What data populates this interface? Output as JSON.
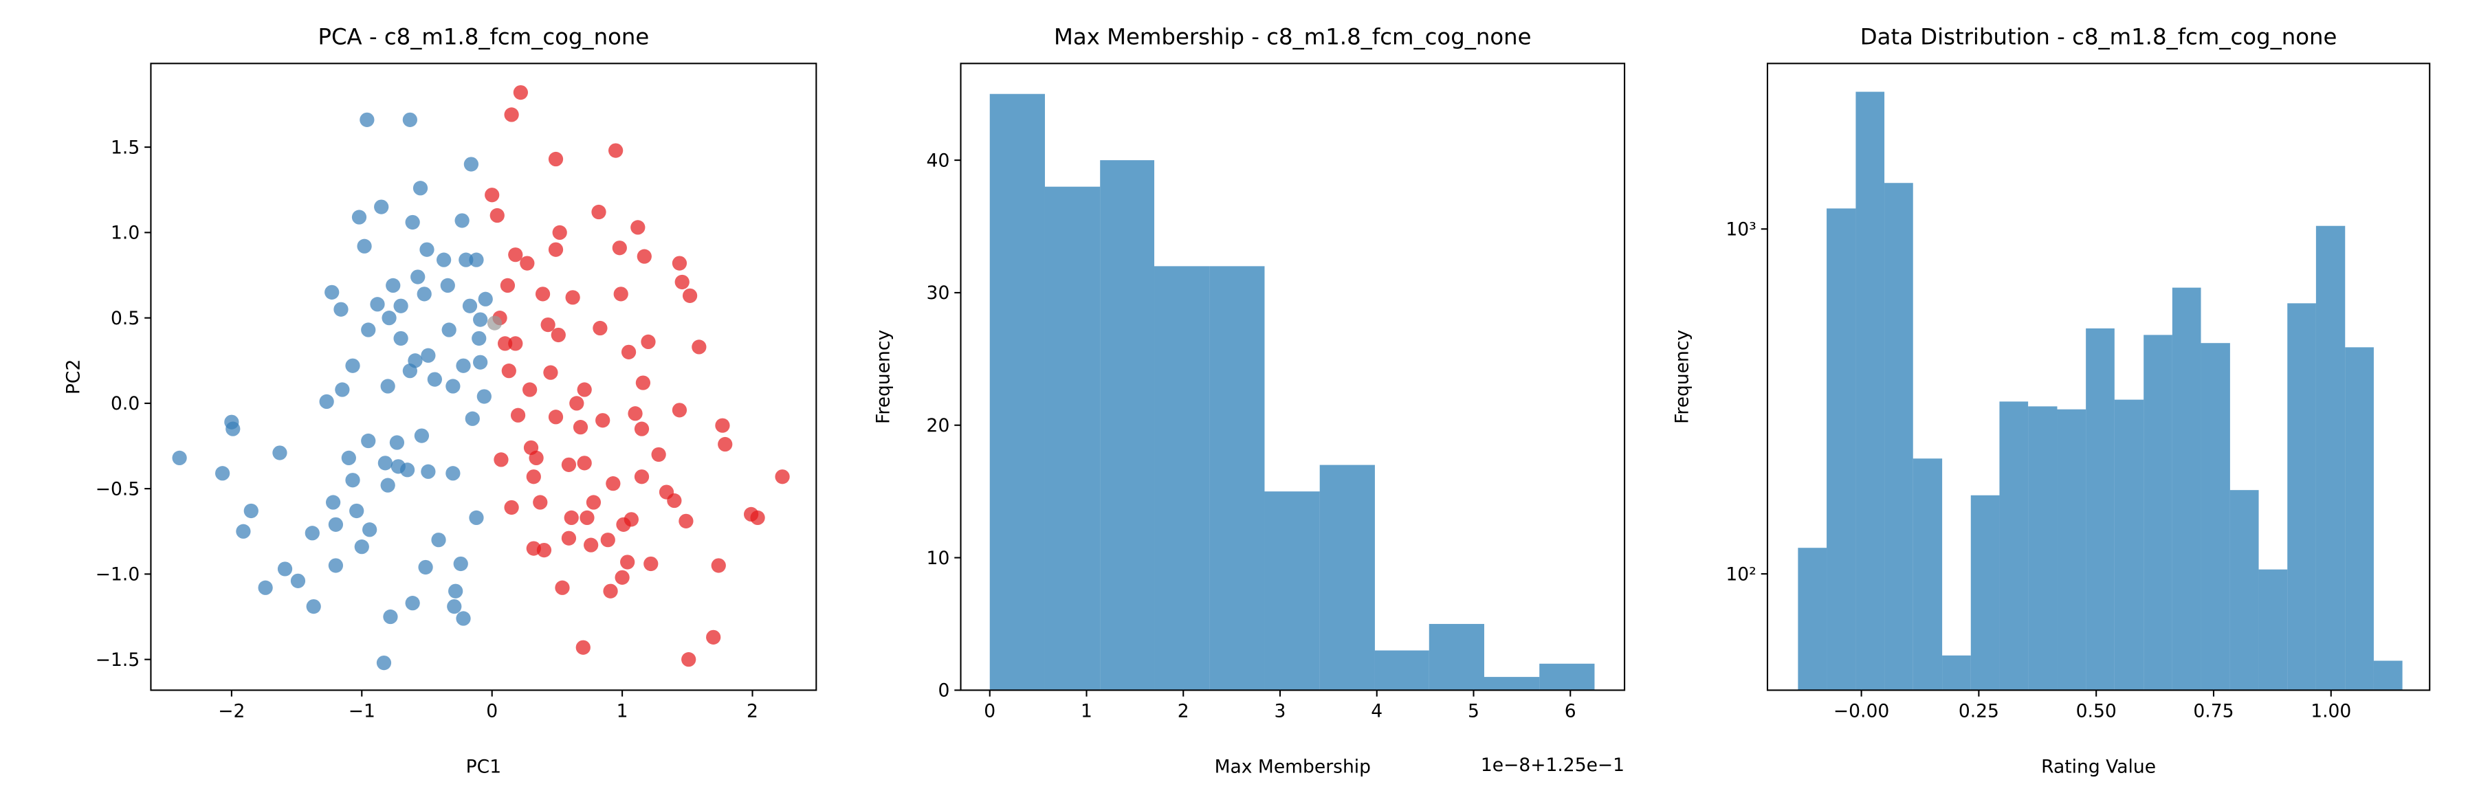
{
  "chart_data": [
    {
      "type": "scatter",
      "title": "PCA - c8_m1.8_fcm_cog_none",
      "x_label": "PC1",
      "y_label": "PC2",
      "xlim": [
        -2.62,
        2.49
      ],
      "ylim": [
        -1.68,
        1.99
      ],
      "xticks": [
        {
          "value": -2,
          "label": "−2"
        },
        {
          "value": -1,
          "label": "−1"
        },
        0,
        1,
        2
      ],
      "yticks": [
        {
          "value": -1.5,
          "label": "−1.5"
        },
        {
          "value": -1.0,
          "label": "−1.0"
        },
        {
          "value": -0.5,
          "label": "−0.5"
        },
        {
          "value": 0,
          "label": "0.0"
        },
        0.5,
        {
          "value": 1.0,
          "label": "1.0"
        },
        1.5
      ],
      "opacity": 0.7,
      "series": [
        {
          "color": "#377eb8",
          "x": [
            -2.4,
            -2.07,
            -2.0,
            -1.99,
            -1.91,
            -1.85,
            -1.74,
            -1.63,
            -1.59,
            -1.49,
            -1.38,
            -1.37,
            -1.27,
            -1.23,
            -1.22,
            -1.2,
            -1.2,
            -1.16,
            -1.15,
            -1.1,
            -1.07,
            -1.07,
            -1.04,
            -1.02,
            -1.0,
            -0.98,
            -0.96,
            -0.95,
            -0.95,
            -0.94,
            -0.88,
            -0.85,
            -0.83,
            -0.82,
            -0.8,
            -0.79,
            -0.8,
            -0.78,
            -0.76,
            -0.73,
            -0.72,
            -0.7,
            -0.65,
            -0.63,
            -0.63,
            -0.61,
            -0.61,
            -0.59,
            -0.57,
            -0.55,
            -0.54,
            -0.52,
            -0.51,
            -0.5,
            -0.49,
            -0.49,
            -0.44,
            -0.41,
            -0.37,
            -0.34,
            -0.33,
            -0.3,
            -0.3,
            -0.29,
            -0.28,
            -0.24,
            -0.23,
            -0.22,
            -0.22,
            -0.2,
            -0.17,
            -0.16,
            -0.12,
            -0.12,
            -0.1,
            -0.09,
            -0.09,
            -0.06,
            -0.05,
            -0.15,
            -0.7
          ],
          "y": [
            -0.32,
            -0.41,
            -0.11,
            -0.15,
            -0.75,
            -0.63,
            -1.08,
            -0.29,
            -0.97,
            -1.04,
            -0.76,
            -1.19,
            0.01,
            0.65,
            -0.58,
            -0.71,
            -0.95,
            0.55,
            0.08,
            -0.32,
            0.22,
            -0.45,
            -0.63,
            1.09,
            -0.84,
            0.92,
            1.66,
            0.43,
            -0.22,
            -0.74,
            0.58,
            1.15,
            -1.52,
            -0.35,
            0.1,
            0.5,
            -0.48,
            -1.25,
            0.69,
            -0.23,
            -0.37,
            0.38,
            -0.39,
            1.66,
            0.19,
            1.06,
            -1.17,
            0.25,
            0.74,
            1.26,
            -0.19,
            0.64,
            -0.96,
            0.9,
            0.28,
            -0.4,
            0.14,
            -0.8,
            0.84,
            0.69,
            0.43,
            0.1,
            -0.41,
            -1.19,
            -1.1,
            -0.94,
            1.07,
            -1.26,
            0.22,
            0.84,
            0.57,
            1.4,
            0.84,
            -0.67,
            0.38,
            0.49,
            0.24,
            0.04,
            0.61,
            -0.09,
            0.57
          ]
        },
        {
          "color": "#e41a1c",
          "x": [
            0.0,
            0.15,
            0.22,
            0.04,
            0.06,
            0.1,
            0.12,
            0.13,
            0.18,
            0.18,
            0.2,
            0.27,
            0.29,
            0.3,
            0.32,
            0.34,
            0.39,
            0.4,
            0.43,
            0.45,
            0.49,
            0.49,
            0.49,
            0.52,
            0.51,
            0.54,
            0.59,
            0.59,
            0.61,
            0.7,
            0.62,
            0.65,
            0.68,
            0.71,
            0.73,
            0.76,
            0.78,
            0.82,
            0.83,
            0.85,
            0.89,
            0.93,
            0.95,
            0.98,
            0.99,
            1.01,
            1.05,
            1.1,
            1.12,
            1.15,
            1.16,
            1.17,
            1.2,
            1.22,
            1.28,
            1.34,
            1.4,
            1.44,
            1.44,
            1.49,
            1.46,
            1.52,
            1.74,
            1.59,
            1.77,
            1.79,
            1.51,
            1.7,
            1.99,
            2.04,
            2.23,
            0.91,
            1.0,
            1.04,
            1.07,
            0.71,
            0.32,
            0.37,
            0.15,
            0.07,
            1.15
          ],
          "y": [
            1.22,
            1.69,
            1.82,
            1.1,
            0.5,
            0.35,
            0.69,
            0.19,
            0.87,
            0.35,
            -0.07,
            0.82,
            0.08,
            -0.26,
            -0.43,
            -0.32,
            0.64,
            -0.86,
            0.46,
            0.18,
            0.9,
            -0.08,
            1.43,
            1.0,
            0.4,
            -1.08,
            -0.36,
            -0.79,
            -0.67,
            -1.43,
            0.62,
            0.0,
            -0.14,
            -0.35,
            -0.67,
            -0.83,
            -0.58,
            1.12,
            0.44,
            -0.1,
            -0.8,
            -0.47,
            1.48,
            0.91,
            0.64,
            -0.71,
            0.3,
            -0.06,
            1.03,
            -0.43,
            0.12,
            0.86,
            0.36,
            -0.94,
            -0.3,
            -0.52,
            -0.57,
            0.82,
            -0.04,
            -0.69,
            0.71,
            0.63,
            -0.95,
            0.33,
            -0.13,
            -0.24,
            -1.5,
            -1.37,
            -0.65,
            -0.67,
            -0.43,
            -1.1,
            -1.02,
            -0.93,
            -0.68,
            0.08,
            -0.85,
            -0.58,
            -0.61,
            -0.33,
            -0.15
          ]
        },
        {
          "color": "#999999",
          "x": [
            0.02
          ],
          "y": [
            0.47
          ]
        }
      ]
    },
    {
      "type": "hist",
      "title": "Max Membership - c8_m1.8_fcm_cog_none",
      "x_label": "Max Membership",
      "y_label": "Frequency",
      "x_offset_label": "1e−8+1.25e−1",
      "xlim": [
        -0.3,
        6.56
      ],
      "ylim": [
        0,
        47.3
      ],
      "xticks": [
        0,
        1,
        2,
        3,
        4,
        5,
        6
      ],
      "yticks": [
        0,
        10,
        20,
        30,
        40
      ],
      "color": "#1f77b4",
      "opacity": 0.7,
      "bins": [
        0,
        0.57,
        1.14,
        1.7,
        2.27,
        2.84,
        3.41,
        3.98,
        4.54,
        5.11,
        5.68,
        6.25
      ],
      "counts": [
        45,
        38,
        40,
        32,
        32,
        15,
        17,
        3,
        5,
        1,
        2
      ]
    },
    {
      "type": "hist",
      "title": "Data Distribution - c8_m1.8_fcm_cog_none",
      "x_label": "Rating Value",
      "y_label": "Frequency",
      "log_y": true,
      "xlim": [
        -0.2,
        1.21
      ],
      "ylim": [
        46,
        3020
      ],
      "xticks": [
        {
          "value": 0,
          "label": "−0.00"
        },
        0.25,
        {
          "value": 0.5,
          "label": "0.50"
        },
        0.75,
        {
          "value": 1.0,
          "label": "1.00"
        }
      ],
      "yticks": [
        {
          "value": 100,
          "label": "10²"
        },
        {
          "value": 1000,
          "label": "10³"
        }
      ],
      "color": "#1f77b4",
      "opacity": 0.7,
      "bins": [
        -0.135,
        -0.074,
        -0.012,
        0.049,
        0.11,
        0.172,
        0.233,
        0.294,
        0.355,
        0.417,
        0.478,
        0.539,
        0.601,
        0.662,
        0.723,
        0.785,
        0.846,
        0.907,
        0.968,
        1.03,
        1.091,
        1.152
      ],
      "counts": [
        119,
        1147,
        2500,
        1360,
        216,
        58,
        169,
        316,
        306,
        300,
        515,
        320,
        493,
        676,
        467,
        175,
        103,
        609,
        1021,
        454,
        56
      ]
    }
  ]
}
